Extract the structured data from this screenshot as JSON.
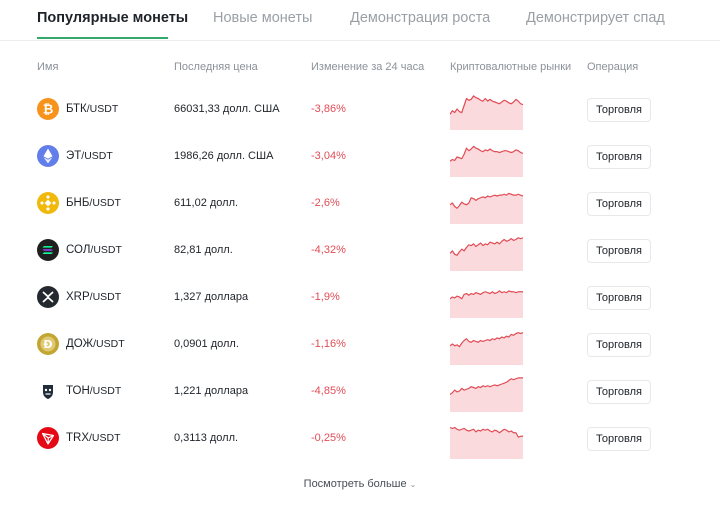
{
  "tabs": [
    {
      "label": "Популярные монеты"
    },
    {
      "label": "Новые монеты"
    },
    {
      "label": "Демонстрация роста"
    },
    {
      "label": "Демонстрирует спад"
    }
  ],
  "columns": {
    "name": "Имя",
    "last_price": "Последняя цена",
    "change_24h": "Изменение за 24 часа",
    "markets": "Криптовалютные рынки",
    "operation": "Операция"
  },
  "colors": {
    "accent": "#33a86a",
    "negative": "#e14d56",
    "spark_fill": "#fadadd"
  },
  "rows": [
    {
      "base": "БТК",
      "quote": "/USDT",
      "price": "66031,33 долл. США",
      "change": "-3,86%",
      "icon": "bitcoin-icon",
      "icon_color": "#f7931a",
      "spark": [
        18,
        22,
        20,
        24,
        21,
        20,
        28,
        36,
        34,
        35,
        39,
        37,
        36,
        34,
        33,
        36,
        33,
        35,
        33,
        32,
        31,
        30,
        32,
        34,
        33,
        31,
        30,
        32,
        35,
        33,
        30,
        29
      ]
    },
    {
      "base": "ЭТ",
      "quote": "/USDT",
      "price": "1986,26 долл. США",
      "change": "-3,04%",
      "icon": "ethereum-icon",
      "icon_color": "#627eea",
      "spark": [
        18,
        20,
        19,
        23,
        22,
        21,
        26,
        33,
        30,
        32,
        35,
        33,
        32,
        30,
        29,
        31,
        30,
        32,
        30,
        29,
        29,
        28,
        29,
        30,
        30,
        29,
        28,
        29,
        31,
        30,
        28,
        27
      ]
    },
    {
      "base": "БНБ",
      "quote": "/USDT",
      "price": "611,02 долл.",
      "change": "-2,6%",
      "icon": "bnb-icon",
      "icon_color": "#f0b90b",
      "spark": [
        22,
        24,
        20,
        18,
        21,
        25,
        23,
        22,
        24,
        30,
        29,
        27,
        29,
        30,
        31,
        30,
        32,
        31,
        32,
        33,
        32,
        33,
        33,
        34,
        33,
        35,
        34,
        33,
        33,
        34,
        33,
        32
      ]
    },
    {
      "base": "СОЛ",
      "quote": "/USDT",
      "price": "82,81 долл.",
      "change": "-4,32%",
      "icon": "solana-icon",
      "icon_color": "#1f1f1f",
      "spark": [
        20,
        23,
        19,
        18,
        22,
        25,
        23,
        27,
        30,
        29,
        31,
        28,
        30,
        32,
        29,
        31,
        30,
        33,
        32,
        31,
        33,
        31,
        34,
        36,
        34,
        35,
        37,
        35,
        36,
        38,
        37,
        38
      ]
    },
    {
      "base": "XRP",
      "quote": "/USDT",
      "price": "1,327 доллара",
      "change": "-1,9%",
      "icon": "xrp-icon",
      "icon_color": "#23292f",
      "spark": [
        22,
        24,
        23,
        25,
        24,
        22,
        27,
        28,
        26,
        28,
        27,
        29,
        28,
        27,
        29,
        30,
        29,
        28,
        30,
        28,
        29,
        31,
        29,
        30,
        29,
        31,
        30,
        30,
        29,
        30,
        30,
        30
      ]
    },
    {
      "base": "ДОЖ",
      "quote": "/USDT",
      "price": "0,0901 долл.",
      "change": "-1,16%",
      "icon": "dogecoin-icon",
      "icon_color": "#c2a633",
      "spark": [
        22,
        24,
        22,
        23,
        21,
        25,
        28,
        30,
        27,
        26,
        28,
        27,
        26,
        28,
        27,
        28,
        29,
        28,
        30,
        29,
        31,
        30,
        32,
        31,
        33,
        32,
        35,
        34,
        36,
        37,
        36,
        37
      ]
    },
    {
      "base": "ТОН",
      "quote": "/USDT",
      "price": "1,221 доллара",
      "change": "-4,85%",
      "icon": "ton-icon",
      "icon_color": "#1f2d3a",
      "spark": [
        20,
        22,
        25,
        23,
        24,
        27,
        25,
        26,
        27,
        29,
        28,
        27,
        29,
        28,
        30,
        29,
        30,
        29,
        30,
        31,
        30,
        31,
        32,
        33,
        34,
        36,
        38,
        37,
        38,
        39,
        39,
        39
      ]
    },
    {
      "base": "TRX",
      "quote": "/USDT",
      "price": "0,3113 долл.",
      "change": "-0,25%",
      "icon": "tron-icon",
      "icon_color": "#e50915",
      "spark": [
        36,
        35,
        36,
        34,
        33,
        34,
        35,
        33,
        32,
        33,
        34,
        31,
        33,
        32,
        34,
        33,
        34,
        32,
        31,
        33,
        32,
        30,
        32,
        34,
        33,
        31,
        32,
        30,
        30,
        25,
        26,
        26
      ]
    }
  ],
  "trade_label": "Торговля",
  "see_more_label": "Посмотреть больше"
}
